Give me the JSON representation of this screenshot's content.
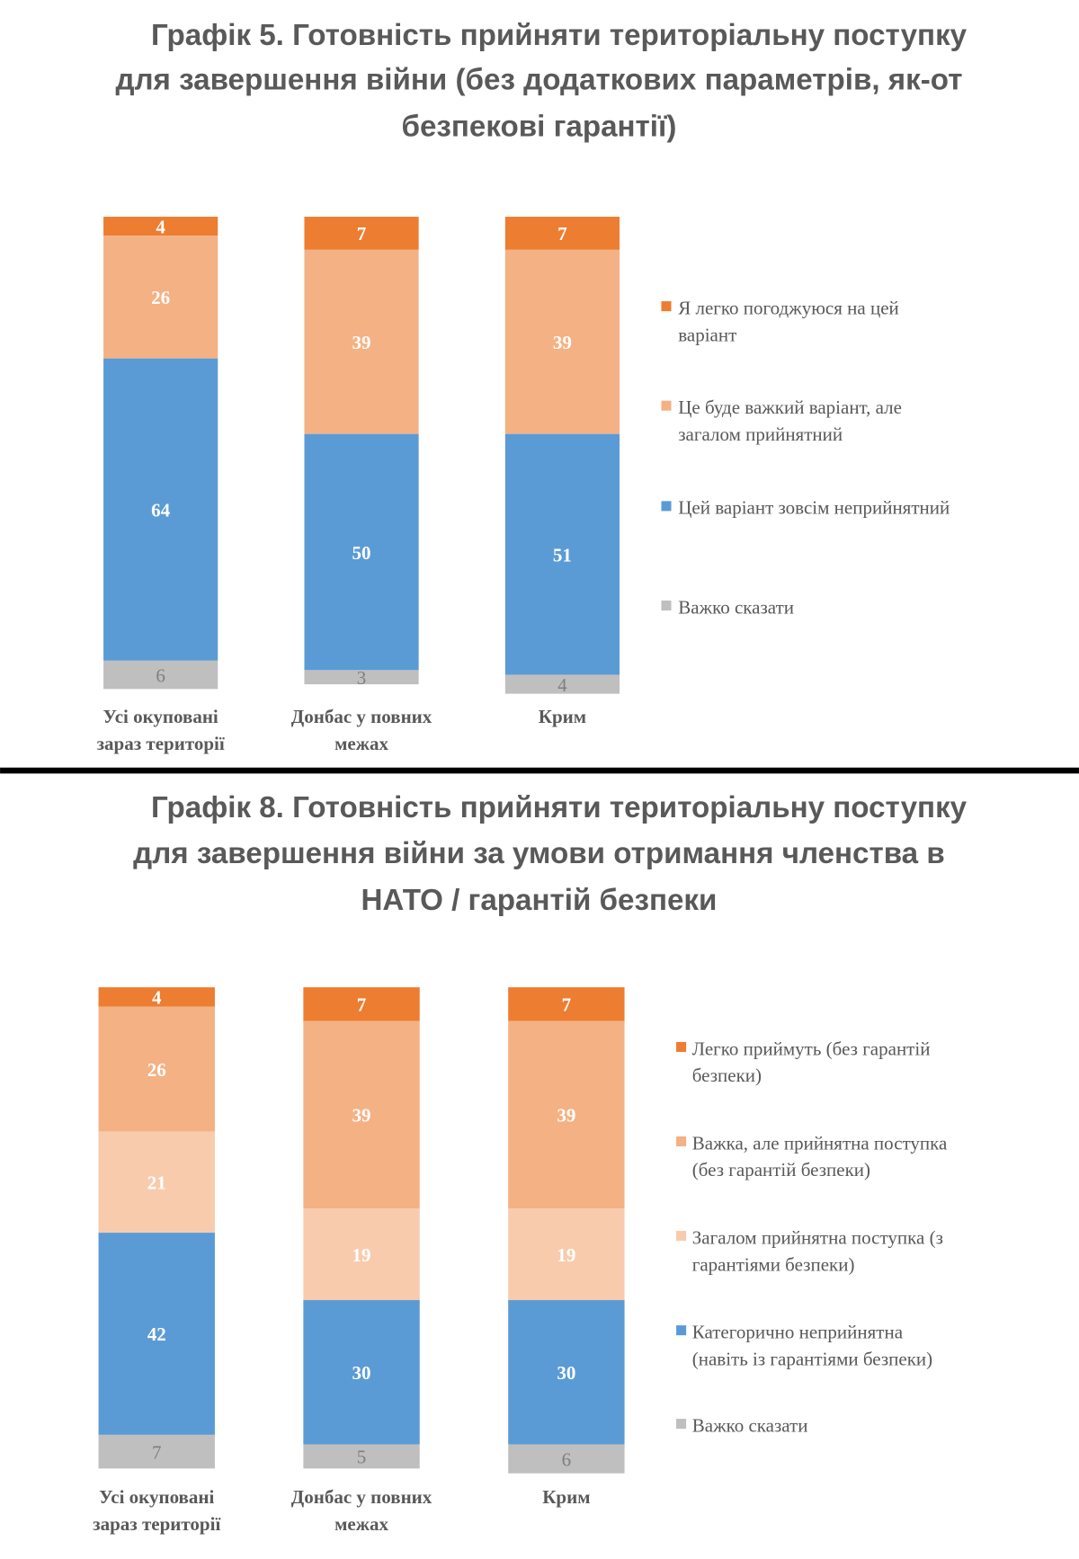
{
  "chart_data": [
    {
      "type": "bar",
      "stacked": true,
      "title": [
        "Графік 5. Готовність прийняти територіальну поступку",
        "для завершення війни (без додаткових параметрів, як-от",
        "безпекові гарантії)"
      ],
      "categories": [
        [
          "Усі окуповані",
          "зараз території"
        ],
        [
          "Донбас у повних",
          "межах"
        ],
        [
          "Крим"
        ]
      ],
      "series": [
        {
          "name": [
            "Я легко погоджуюся на цей",
            "варіант"
          ],
          "color": "#ED7D31",
          "values": [
            4,
            7,
            7
          ]
        },
        {
          "name": [
            "Це буде важкий варіант, але",
            "загалом прийнятний"
          ],
          "color": "#F4B183",
          "values": [
            26,
            39,
            39
          ]
        },
        {
          "name": [
            "Цей варіант зовсім неприйнятний"
          ],
          "color": "#5B9BD5",
          "values": [
            64,
            50,
            51
          ]
        },
        {
          "name": [
            "Важко сказати"
          ],
          "color": "#BFBFBF",
          "values": [
            6,
            3,
            4
          ]
        }
      ],
      "ylim": [
        0,
        100
      ],
      "legend": "right",
      "grid": false
    },
    {
      "type": "bar",
      "stacked": true,
      "title": [
        "Графік 8. Готовність прийняти територіальну поступку",
        "для завершення війни за умови отримання членства в",
        "НАТО / гарантій безпеки"
      ],
      "categories": [
        [
          "Усі окуповані",
          "зараз території"
        ],
        [
          "Донбас у повних",
          "межах"
        ],
        [
          "Крим"
        ]
      ],
      "series": [
        {
          "name": [
            "Легко приймуть (без гарантій",
            "безпеки)"
          ],
          "color": "#ED7D31",
          "values": [
            4,
            7,
            7
          ]
        },
        {
          "name": [
            "Важка, але прийнятна поступка",
            "(без гарантій безпеки)"
          ],
          "color": "#F4B183",
          "values": [
            26,
            39,
            39
          ]
        },
        {
          "name": [
            "Загалом прийнятна поступка (з",
            "гарантіями безпеки)"
          ],
          "color": "#F8CBAD",
          "values": [
            21,
            19,
            19
          ]
        },
        {
          "name": [
            "Категорично неприйнятна",
            "(навіть із гарантіями безпеки)"
          ],
          "color": "#5B9BD5",
          "values": [
            42,
            30,
            30
          ]
        },
        {
          "name": [
            "Важко сказати"
          ],
          "color": "#BFBFBF",
          "values": [
            7,
            5,
            6
          ]
        }
      ],
      "ylim": [
        0,
        100
      ],
      "legend": "right",
      "grid": false
    }
  ]
}
